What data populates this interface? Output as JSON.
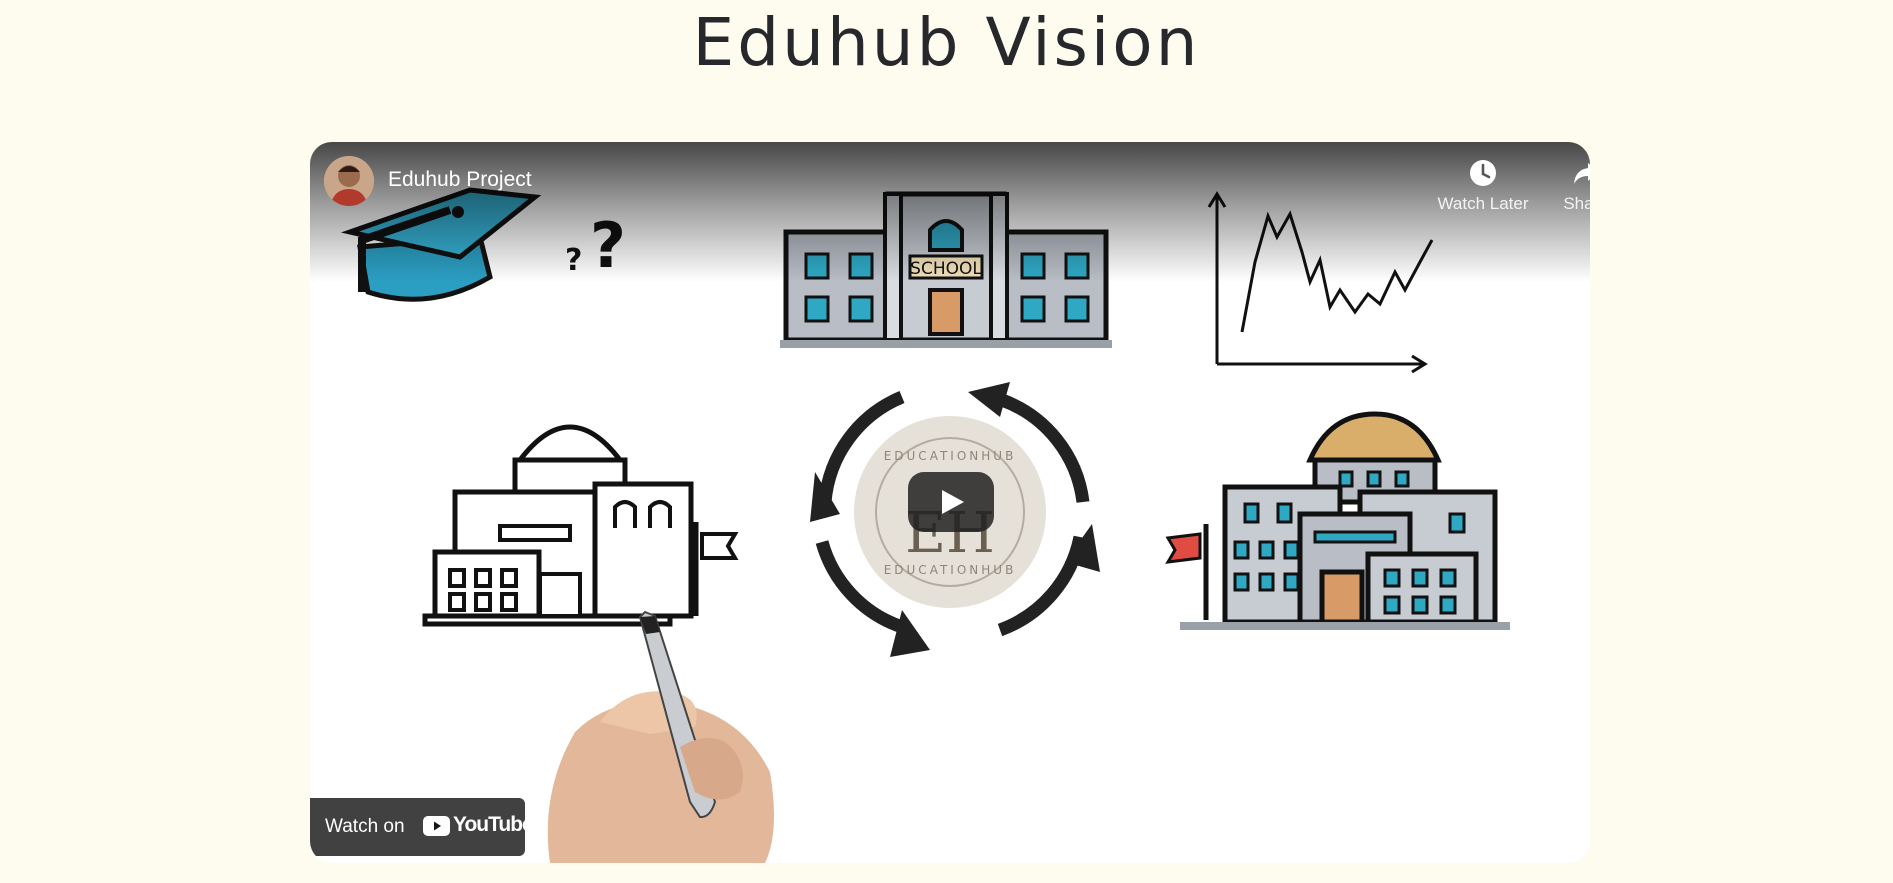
{
  "page": {
    "title": "Eduhub Vision"
  },
  "video": {
    "channel_name": "Eduhub Project",
    "actions": {
      "watch_later_label": "Watch Later",
      "share_label": "Share"
    },
    "watch_on": {
      "label": "Watch on",
      "logo_text": "YouTube"
    },
    "thumbnail": {
      "school_sign": "SCHOOL",
      "question_mark": "?",
      "small_question_mark": "?",
      "logo_ring_text": "EDUCATIONHUB",
      "logo_monogram": "EH"
    }
  },
  "colors": {
    "page_background": "#fdfcef",
    "title_text": "#27282c",
    "cap_blue": "#2b9ec2",
    "window_blue": "#2fa8c4",
    "building_gray": "#b8bdc6",
    "door_orange": "#d89a66",
    "dome_gold": "#d9ae6a",
    "flag_red": "#e04b42",
    "logo_beige": "#e6e1d8"
  },
  "icons": {
    "watch_later": "clock-icon",
    "share": "share-arrow-icon",
    "play": "play-icon",
    "youtube": "youtube-logo-icon"
  }
}
